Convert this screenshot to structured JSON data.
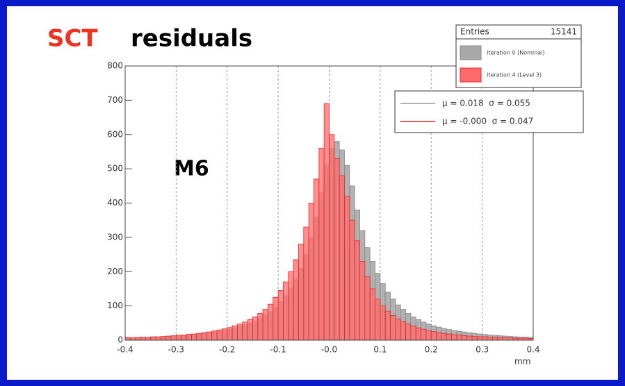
{
  "chart_data": {
    "type": "histogram",
    "title_highlight": "SCT",
    "title_rest": "residuals",
    "annotation": "M6",
    "x_label": "mm",
    "stats": {
      "label": "Entries",
      "value": 15141
    },
    "bins": [
      -0.4,
      -0.39,
      -0.38,
      -0.37,
      -0.36,
      -0.35,
      -0.34,
      -0.33,
      -0.32,
      -0.31,
      -0.3,
      -0.29,
      -0.28,
      -0.27,
      -0.26,
      -0.25,
      -0.24,
      -0.23,
      -0.22,
      -0.21,
      -0.2,
      -0.19,
      -0.18,
      -0.17,
      -0.16,
      -0.15,
      -0.14,
      -0.13,
      -0.12,
      -0.11,
      -0.1,
      -0.09,
      -0.08,
      -0.07,
      -0.06,
      -0.05,
      -0.04,
      -0.03,
      -0.02,
      -0.01,
      0,
      0.01,
      0.02,
      0.03,
      0.04,
      0.05,
      0.06,
      0.07,
      0.08,
      0.09,
      0.1,
      0.11,
      0.12,
      0.13,
      0.14,
      0.15,
      0.16,
      0.17,
      0.18,
      0.19,
      0.2,
      0.21,
      0.22,
      0.23,
      0.24,
      0.25,
      0.26,
      0.27,
      0.28,
      0.29,
      0.3,
      0.31,
      0.32,
      0.33,
      0.34,
      0.35,
      0.36,
      0.37,
      0.38,
      0.39,
      0.4
    ],
    "series": [
      {
        "name": "Iteration 0 (Nominal)",
        "color": "#a8a8a8",
        "values": [
          7,
          6,
          7,
          8,
          8,
          9,
          9,
          10,
          11,
          12,
          13,
          14,
          15,
          16,
          18,
          20,
          22,
          24,
          26,
          29,
          32,
          36,
          40,
          45,
          50,
          56,
          63,
          72,
          83,
          96,
          112,
          130,
          152,
          178,
          210,
          250,
          300,
          360,
          430,
          510,
          560,
          580,
          555,
          510,
          450,
          380,
          320,
          270,
          230,
          195,
          165,
          140,
          120,
          103,
          90,
          78,
          68,
          60,
          53,
          47,
          42,
          38,
          34,
          31,
          28,
          26,
          24,
          22,
          20,
          18,
          17,
          15,
          14,
          13,
          12,
          11,
          10,
          9,
          9,
          8
        ]
      },
      {
        "name": "Iteration 4 (Level 3)",
        "color": "#ff6b6b",
        "values": [
          8,
          7,
          8,
          9,
          8,
          10,
          10,
          11,
          12,
          13,
          14,
          15,
          17,
          18,
          20,
          22,
          24,
          27,
          30,
          33,
          37,
          42,
          47,
          53,
          60,
          68,
          78,
          90,
          105,
          125,
          145,
          170,
          200,
          235,
          280,
          330,
          400,
          470,
          560,
          690,
          600,
          530,
          480,
          420,
          350,
          290,
          230,
          185,
          150,
          120,
          100,
          85,
          72,
          62,
          54,
          47,
          41,
          36,
          32,
          28,
          25,
          22,
          20,
          18,
          16,
          15,
          13,
          12,
          11,
          10,
          10,
          9,
          8,
          8,
          7,
          7,
          6,
          6,
          6,
          5
        ]
      }
    ],
    "fits": [
      {
        "text": "μ = 0.018  σ = 0.055",
        "color": "#999999"
      },
      {
        "text": "μ = -0.000  σ = 0.047",
        "color": "#ee2222"
      }
    ],
    "xlim": [
      -0.4,
      0.4
    ],
    "ylim": [
      0,
      800
    ],
    "xticks": [
      -0.4,
      -0.3,
      -0.2,
      -0.1,
      {
        "value": 0,
        "label": "-0.0"
      },
      0.1,
      0.2,
      0.3,
      0.4
    ],
    "yticks": [
      0,
      100,
      200,
      300,
      400,
      500,
      600,
      700,
      800
    ],
    "grid": true
  }
}
